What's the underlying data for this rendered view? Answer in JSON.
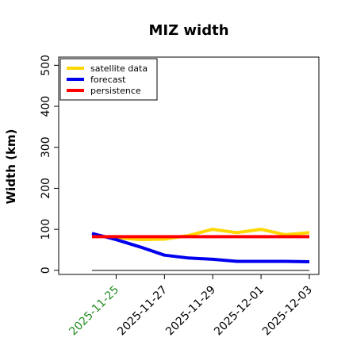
{
  "chart_data": {
    "type": "line",
    "title": "MIZ width",
    "xlabel": "",
    "ylabel": "Width (km)",
    "ylim": [
      -10,
      520
    ],
    "y_ticks": [
      0,
      100,
      200,
      300,
      400,
      500
    ],
    "x": [
      "2025-11-24",
      "2025-11-25",
      "2025-11-26",
      "2025-11-27",
      "2025-11-28",
      "2025-11-29",
      "2025-11-30",
      "2025-12-01",
      "2025-12-02",
      "2025-12-03"
    ],
    "x_ticks": [
      "2025-11-25",
      "2025-11-27",
      "2025-11-29",
      "2025-12-01",
      "2025-12-03"
    ],
    "highlight_tick": "2025-11-25",
    "highlight_color": "#228B22",
    "legend_position": "top-left",
    "series": [
      {
        "name": "satellite data",
        "color": "#FFD700",
        "values": [
          null,
          80,
          75,
          76,
          85,
          100,
          92,
          100,
          87,
          92
        ]
      },
      {
        "name": "forecast",
        "color": "#0000EE",
        "values": [
          90,
          75,
          57,
          37,
          30,
          27,
          22,
          22,
          22,
          21
        ]
      },
      {
        "name": "persistence",
        "color": "#FF0000",
        "values": [
          82,
          82,
          82,
          82,
          82,
          82,
          82,
          82,
          82,
          82
        ]
      }
    ],
    "reference_line": {
      "y": 0,
      "color": "#555555"
    }
  }
}
